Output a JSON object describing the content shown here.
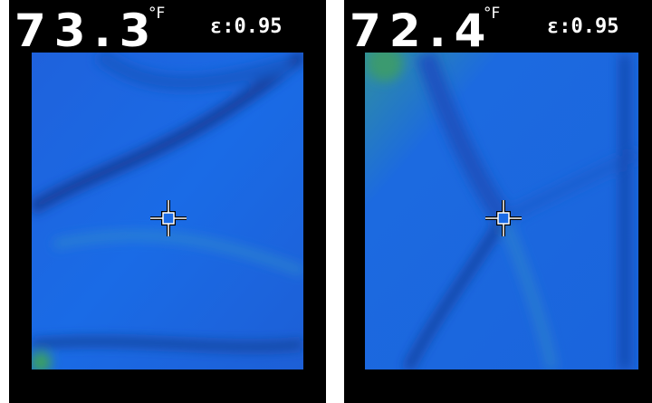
{
  "panels": [
    {
      "temperature": "73.3",
      "unit": "°F",
      "emissivity": "ε:0.95"
    },
    {
      "temperature": "72.4",
      "unit": "°F",
      "emissivity": "ε:0.95"
    }
  ]
}
